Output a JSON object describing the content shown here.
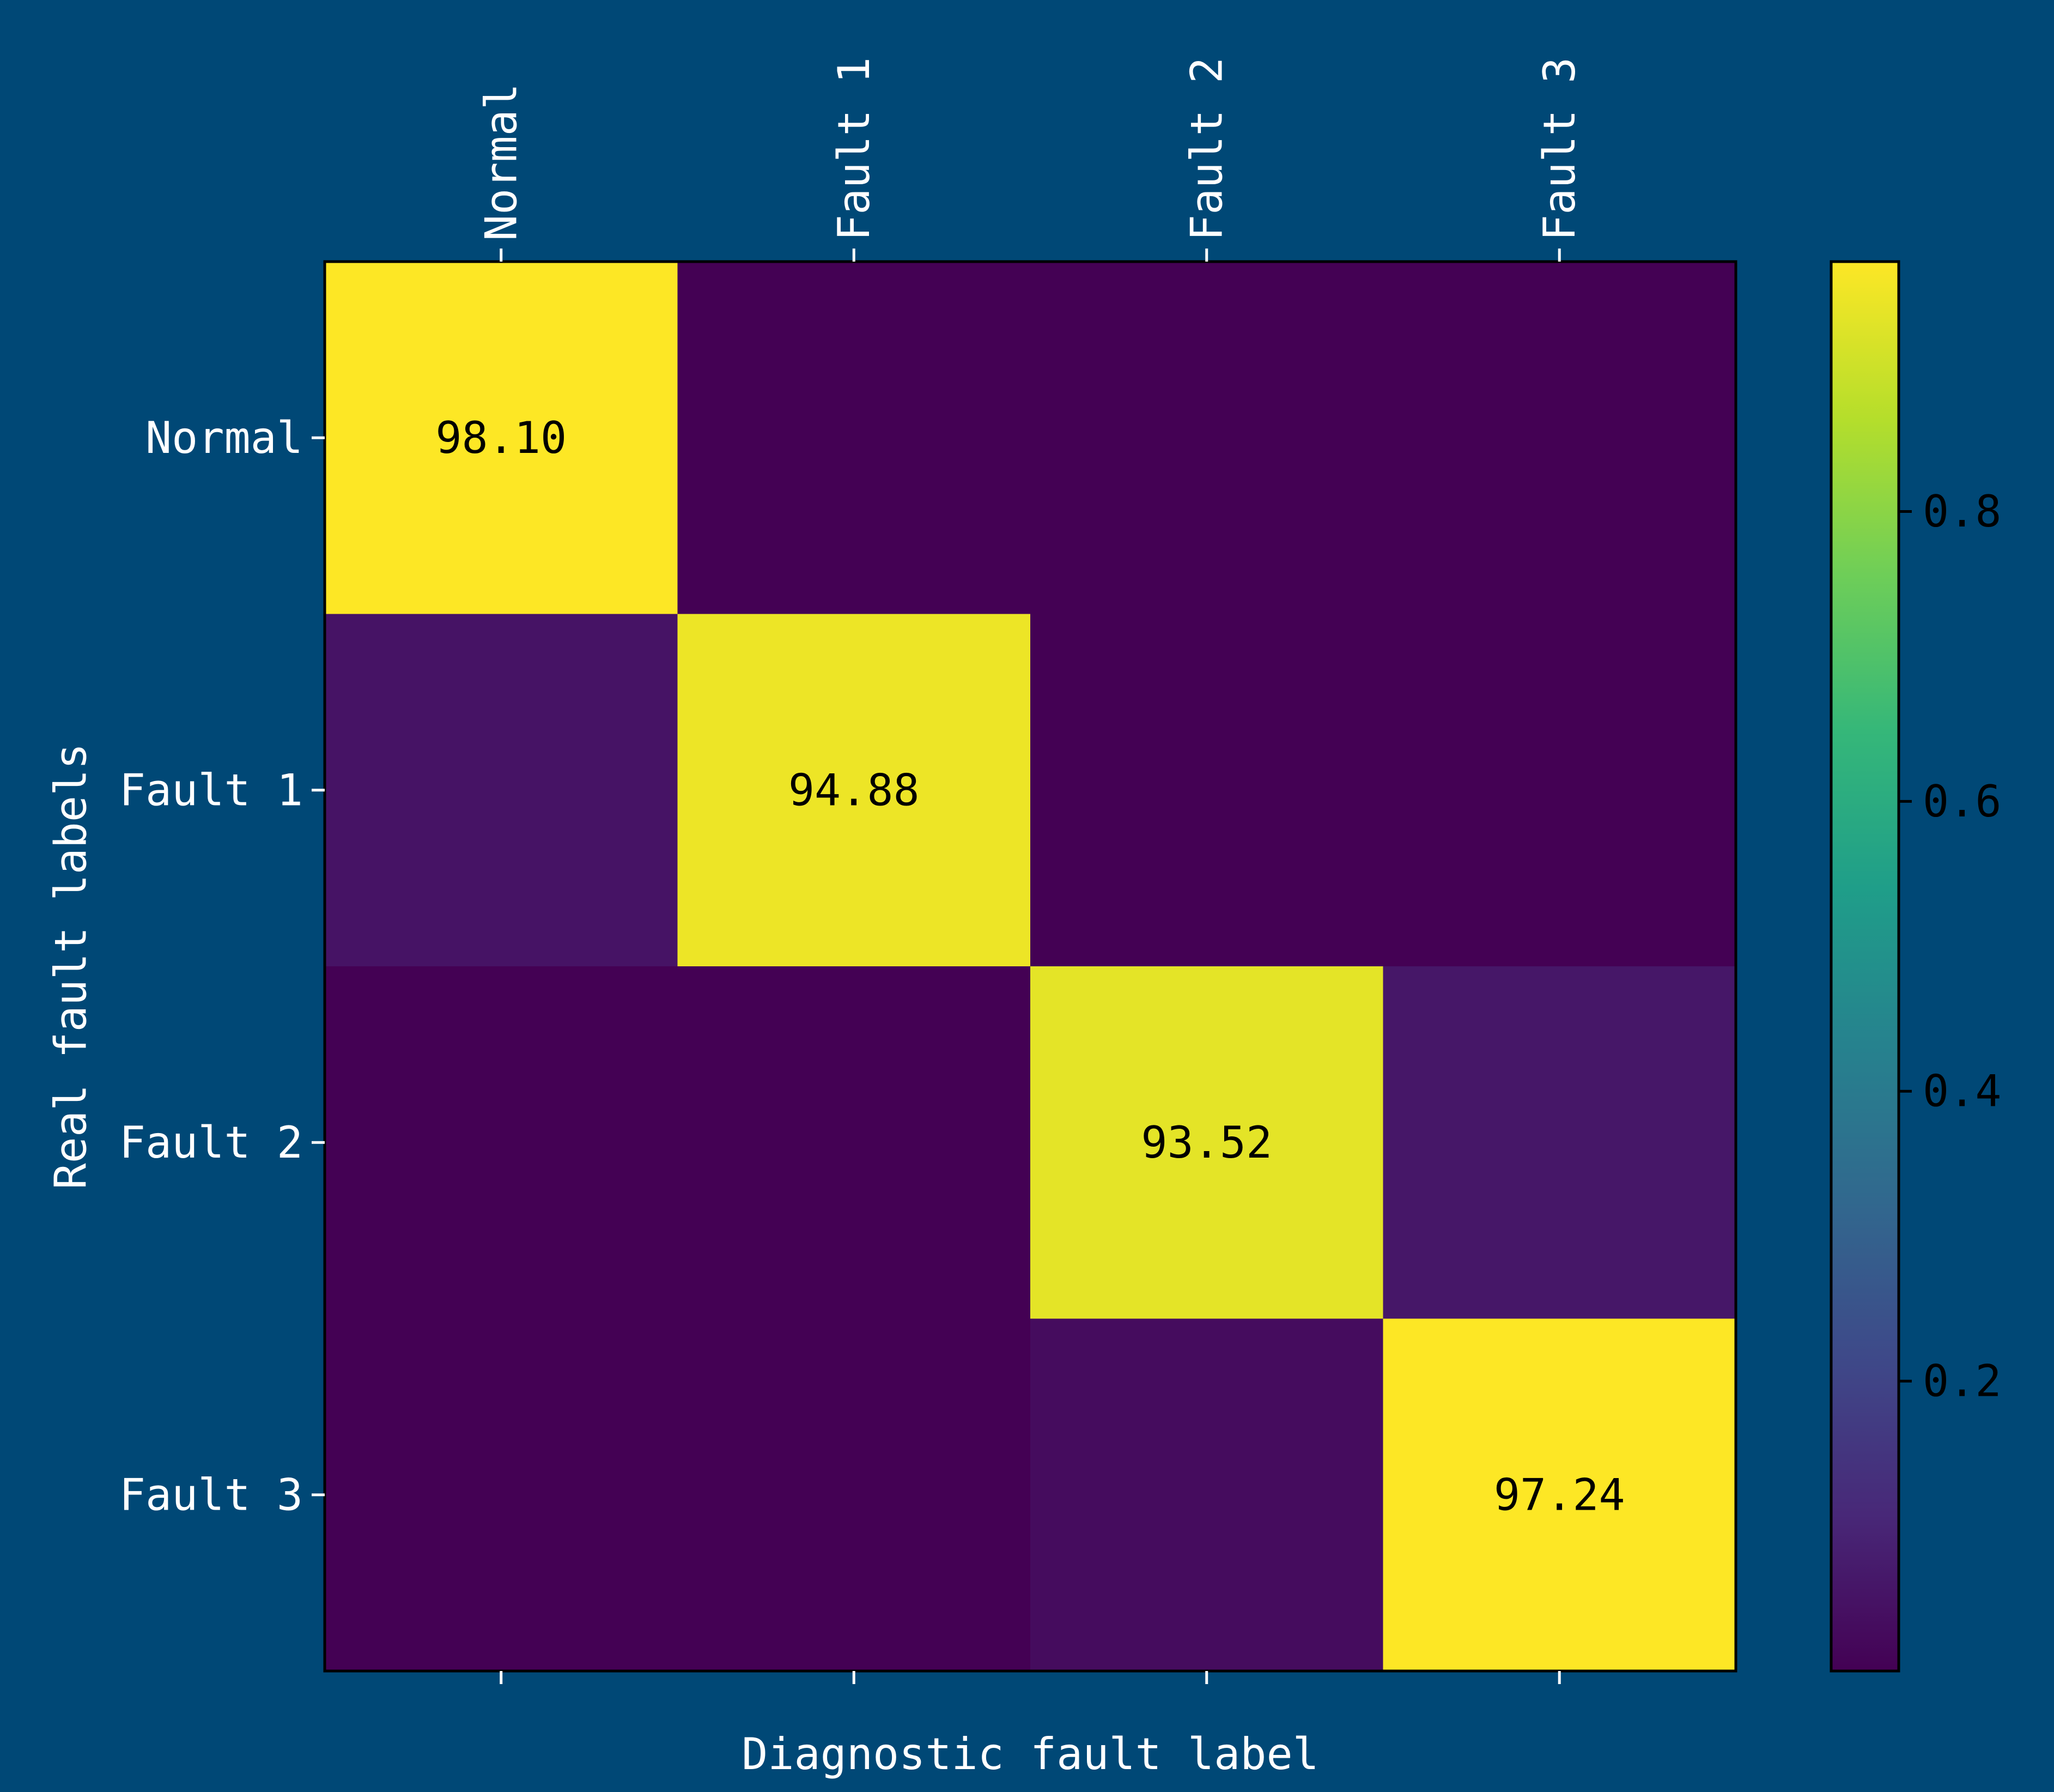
{
  "chart_data": {
    "type": "heatmap",
    "title": "",
    "xlabel": "Diagnostic fault label",
    "ylabel": "Real fault labels",
    "x_categories": [
      "Normal",
      "Fault 1",
      "Fault 2",
      "Fault 3"
    ],
    "y_categories": [
      "Normal",
      "Fault 1",
      "Fault 2",
      "Fault 3"
    ],
    "values": [
      [
        0.981,
        0.0,
        0.0,
        0.0
      ],
      [
        0.05,
        0.9488,
        0.0,
        0.0
      ],
      [
        0.0,
        0.0,
        0.9352,
        0.06
      ],
      [
        0.0,
        0.0,
        0.03,
        0.9724
      ]
    ],
    "cell_labels": [
      [
        "98.10",
        "",
        "",
        ""
      ],
      [
        "",
        "94.88",
        "",
        ""
      ],
      [
        "",
        "",
        "93.52",
        ""
      ],
      [
        "",
        "",
        "",
        "97.24"
      ]
    ],
    "colormap": "viridis",
    "colorbar": {
      "range": [
        0.0,
        0.9724
      ],
      "ticks": [
        0.2,
        0.4,
        0.6,
        0.8
      ],
      "tick_labels": [
        "0.2",
        "0.4",
        "0.6",
        "0.8"
      ]
    },
    "x_tick_position": "top",
    "grid": false,
    "background_color": "#004876",
    "text_color": "#ffffff"
  }
}
